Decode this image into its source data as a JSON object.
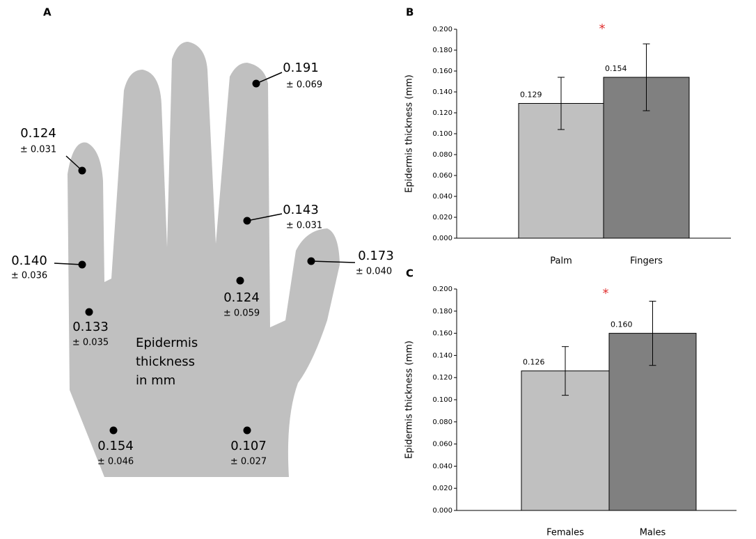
{
  "diagram": {
    "panel_label": "A",
    "caption": [
      "Epidermis",
      "thickness",
      "in mm"
    ],
    "sites": [
      {
        "mean": "0.124",
        "sd": "± 0.031"
      },
      {
        "mean": "0.140",
        "sd": "± 0.036"
      },
      {
        "mean": "0.133",
        "sd": "± 0.035"
      },
      {
        "mean": "0.154",
        "sd": "± 0.046"
      },
      {
        "mean": "0.107",
        "sd": "± 0.027"
      },
      {
        "mean": "0.124",
        "sd": "± 0.059"
      },
      {
        "mean": "0.143",
        "sd": "± 0.031"
      },
      {
        "mean": "0.191",
        "sd": "± 0.069"
      },
      {
        "mean": "0.173",
        "sd": "± 0.040"
      }
    ]
  },
  "chart_data": [
    {
      "type": "bar",
      "panel_label": "B",
      "y_label": "Epidermis thickness (mm)",
      "annotation": "*",
      "categories": [
        "Palm",
        "Fingers"
      ],
      "values": [
        0.129,
        0.154
      ],
      "value_labels": [
        "0.129",
        "0.154"
      ],
      "errors": [
        0.025,
        0.032
      ],
      "colors": [
        "#c0c0c0",
        "#808080"
      ],
      "ylim": [
        0,
        0.2
      ],
      "yticks": [
        {
          "value": 0,
          "label": "0.000"
        },
        {
          "value": 0.02,
          "label": "0.020"
        },
        {
          "value": 0.04,
          "label": "0.040"
        },
        {
          "value": 0.06,
          "label": "0.060"
        },
        {
          "value": 0.08,
          "label": "0.080"
        },
        {
          "value": 0.1,
          "label": "0.100"
        },
        {
          "value": 0.12,
          "label": "0.120"
        },
        {
          "value": 0.14,
          "label": "0.140"
        },
        {
          "value": 0.16,
          "label": "0.160"
        },
        {
          "value": 0.18,
          "label": "0.180"
        },
        {
          "value": 0.2,
          "label": "0.200"
        }
      ]
    },
    {
      "type": "bar",
      "panel_label": "C",
      "y_label": "Epidermis thickness (mm)",
      "annotation": "*",
      "categories": [
        "Females",
        "Males"
      ],
      "values": [
        0.126,
        0.16
      ],
      "value_labels": [
        "0.126",
        "0.160"
      ],
      "errors": [
        0.022,
        0.029
      ],
      "colors": [
        "#c0c0c0",
        "#808080"
      ],
      "ylim": [
        0,
        0.2
      ],
      "yticks": [
        {
          "value": 0,
          "label": "0.000"
        },
        {
          "value": 0.02,
          "label": "0.020"
        },
        {
          "value": 0.04,
          "label": "0.040"
        },
        {
          "value": 0.06,
          "label": "0.060"
        },
        {
          "value": 0.08,
          "label": "0.080"
        },
        {
          "value": 0.1,
          "label": "0.100"
        },
        {
          "value": 0.12,
          "label": "0.120"
        },
        {
          "value": 0.14,
          "label": "0.140"
        },
        {
          "value": 0.16,
          "label": "0.160"
        },
        {
          "value": 0.18,
          "label": "0.180"
        },
        {
          "value": 0.2,
          "label": "0.200"
        }
      ]
    }
  ]
}
